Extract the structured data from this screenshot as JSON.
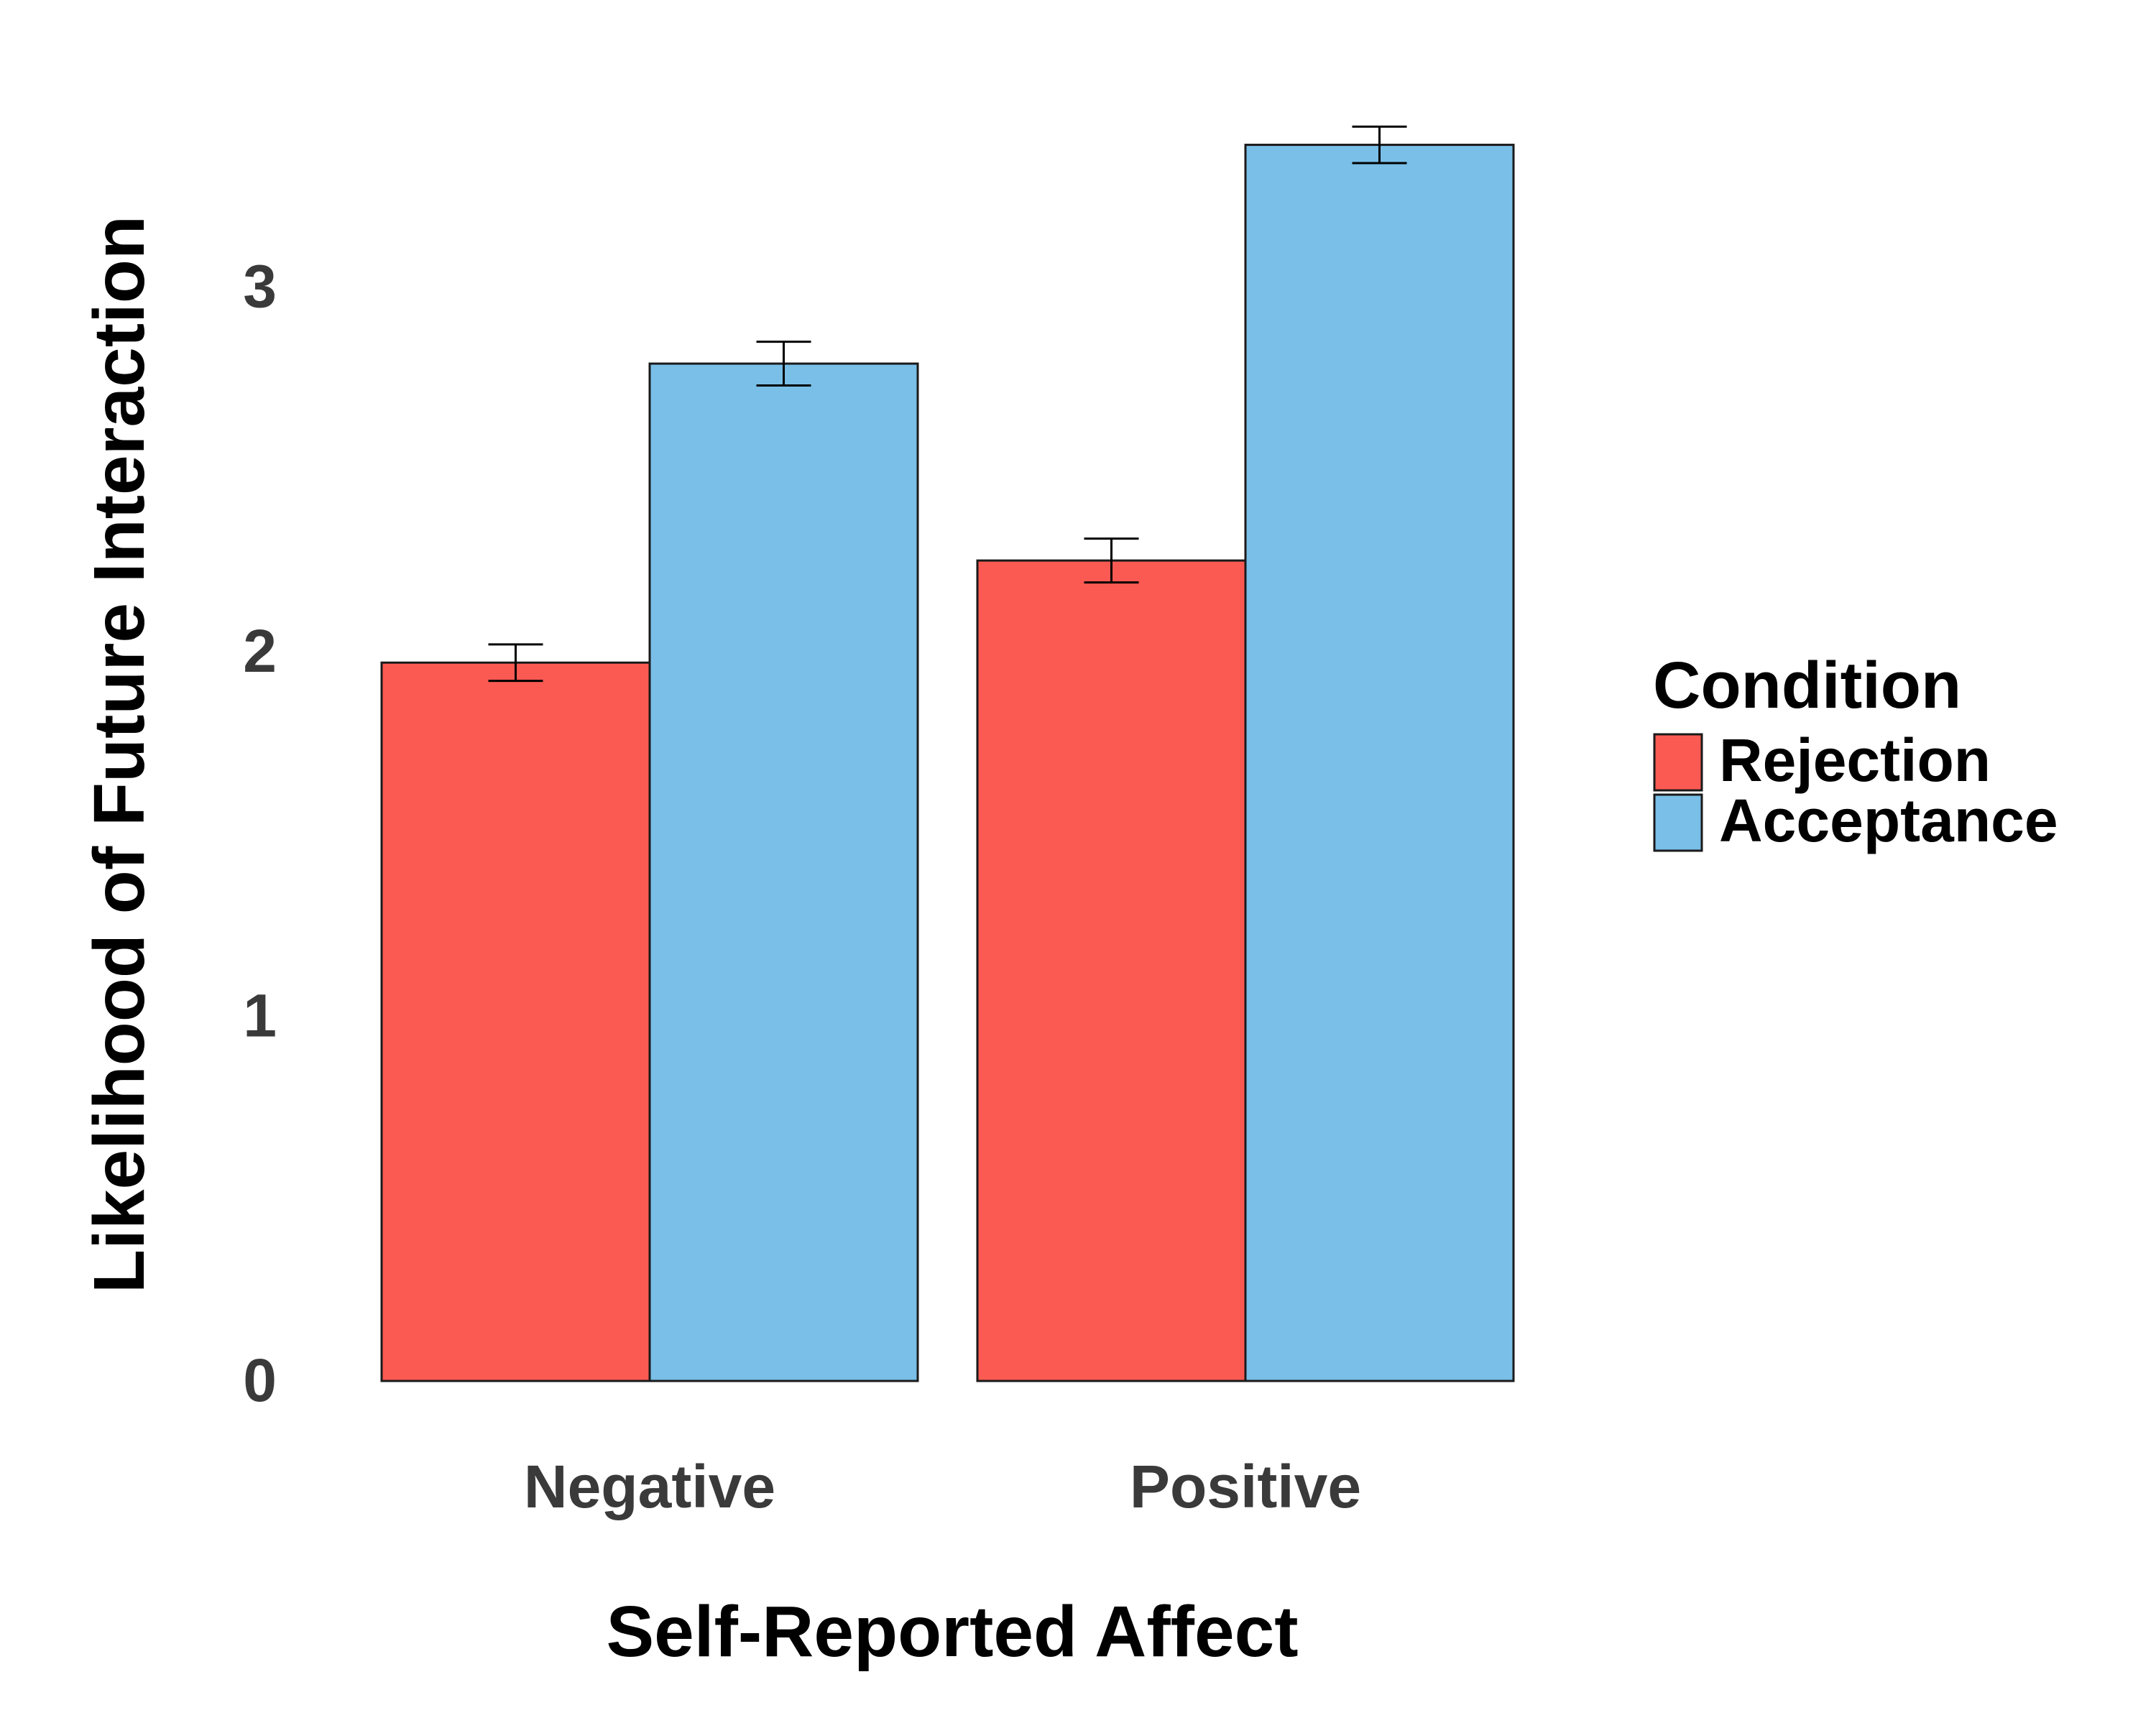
{
  "chart_data": {
    "type": "bar",
    "xlabel": "Self-Reported Affect",
    "ylabel": "Likelihood of Future Interaction",
    "categories": [
      "Negative",
      "Positive"
    ],
    "yticks": [
      "0",
      "1",
      "2",
      "3"
    ],
    "ylim": [
      0,
      3.55
    ],
    "series": [
      {
        "name": "Rejection",
        "color": "#fa5a52",
        "values": [
          1.97,
          2.25
        ],
        "err": [
          0.05,
          0.06
        ]
      },
      {
        "name": "Acceptance",
        "color": "#79bfe8",
        "values": [
          2.79,
          3.39
        ],
        "err": [
          0.06,
          0.05
        ]
      }
    ],
    "legend": {
      "title": "Condition",
      "placement": "right"
    },
    "grid": false
  }
}
